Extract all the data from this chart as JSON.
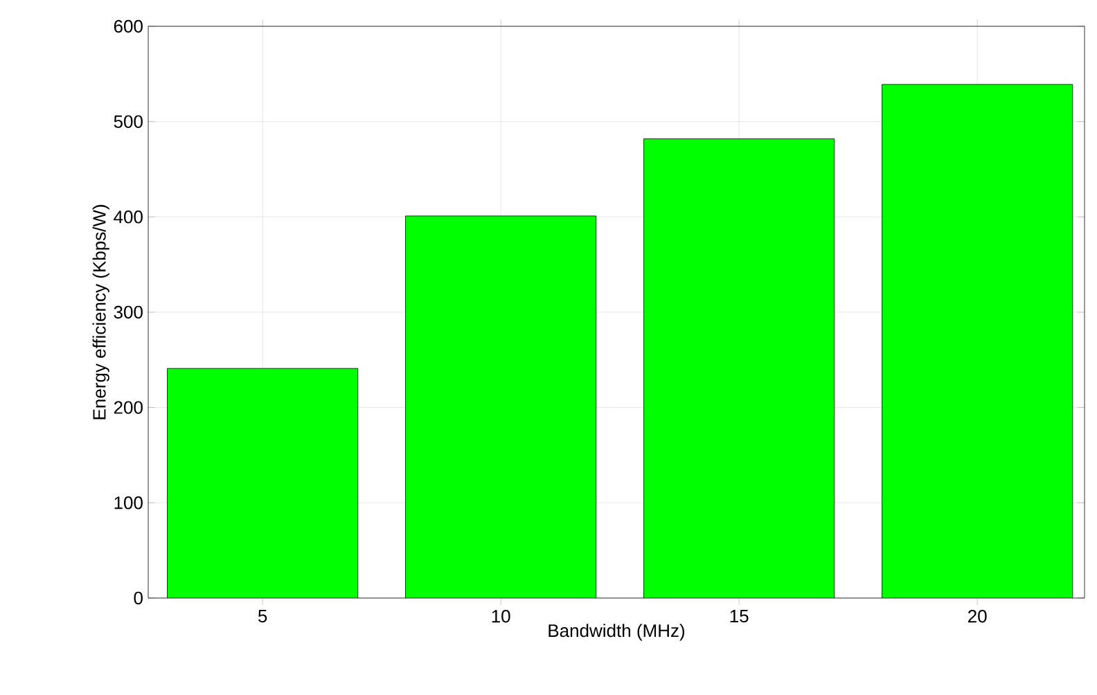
{
  "chart_data": {
    "type": "bar",
    "xlabel": "Bandwidth (MHz)",
    "ylabel": "Energy efficiency (Kbps/W)",
    "categories": [
      "5",
      "10",
      "15",
      "20"
    ],
    "values": [
      241,
      401,
      482,
      539
    ],
    "color": "#00ff00",
    "ylim": [
      0,
      600
    ],
    "yticks": [
      0,
      100,
      200,
      300,
      400,
      500,
      600
    ],
    "grid": true
  }
}
